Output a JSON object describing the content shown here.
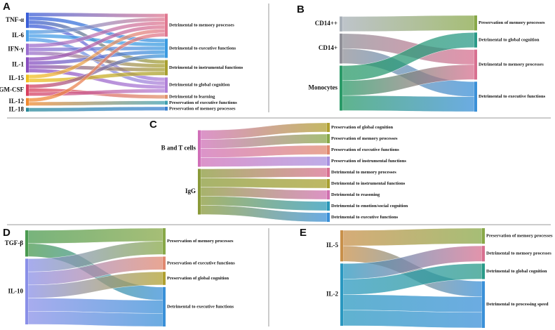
{
  "panels": [
    {
      "letter": "A",
      "sources": [
        {
          "label": "TNF-α",
          "color": "#3a5fd8"
        },
        {
          "label": "IL-6",
          "color": "#4a9fe8"
        },
        {
          "label": "IFN-γ",
          "color": "#9b6fd0"
        },
        {
          "label": "IL-1",
          "color": "#8a4fc0"
        },
        {
          "label": "IL-15",
          "color": "#f0c020"
        },
        {
          "label": "GM-CSF",
          "color": "#d84060"
        },
        {
          "label": "IL-12",
          "color": "#f08a30"
        },
        {
          "label": "IL-18",
          "color": "#2a8a9a"
        }
      ],
      "targets": [
        {
          "label": "Detrimental to memory processes",
          "color": "#e07890"
        },
        {
          "label": "Detrimental to executive functions",
          "color": "#3a9ae0"
        },
        {
          "label": "Detrimental to instrumental functions",
          "color": "#a8a030"
        },
        {
          "label": "Detrimental to global cognition",
          "color": "#b080d8"
        },
        {
          "label": "Detrimental to learning",
          "color": "#e0906a"
        },
        {
          "label": "Preservation of executive functions",
          "color": "#40a0b0"
        },
        {
          "label": "Preservation of memory processes",
          "color": "#3a80d0"
        }
      ],
      "links": [
        [
          0,
          0
        ],
        [
          0,
          1
        ],
        [
          0,
          2
        ],
        [
          0,
          3
        ],
        [
          1,
          0
        ],
        [
          1,
          1
        ],
        [
          1,
          3
        ],
        [
          2,
          0
        ],
        [
          2,
          1
        ],
        [
          2,
          2
        ],
        [
          3,
          0
        ],
        [
          3,
          1
        ],
        [
          3,
          2
        ],
        [
          3,
          3
        ],
        [
          4,
          0
        ],
        [
          4,
          2
        ],
        [
          5,
          1
        ],
        [
          5,
          4
        ],
        [
          5,
          3
        ],
        [
          6,
          0
        ],
        [
          6,
          5
        ],
        [
          7,
          6
        ]
      ]
    },
    {
      "letter": "B",
      "sources": [
        {
          "label": "CD14++",
          "color": "#a8b0b8"
        },
        {
          "label": "CD14+",
          "color": "#909098"
        },
        {
          "label": "Monocytes",
          "color": "#2a9a68"
        }
      ],
      "targets": [
        {
          "label": "Preservation of memory processes",
          "color": "#88a848"
        },
        {
          "label": "Detrimental to global cognition",
          "color": "#2a9a88"
        },
        {
          "label": "Detrimental to memory processes",
          "color": "#d87090"
        },
        {
          "label": "Detrimental to executive functions",
          "color": "#3a90d8"
        }
      ],
      "links": [
        [
          0,
          0
        ],
        [
          1,
          2
        ],
        [
          1,
          3
        ],
        [
          2,
          1
        ],
        [
          2,
          2
        ],
        [
          2,
          3
        ]
      ]
    },
    {
      "letter": "C",
      "sources": [
        {
          "label": "B and T cells",
          "color": "#d070b8"
        },
        {
          "label": "IgG",
          "color": "#8a9a3a"
        }
      ],
      "targets": [
        {
          "label": "Preservation of global cognition",
          "color": "#b0a030"
        },
        {
          "label": "Preservation of memory processes",
          "color": "#88a848"
        },
        {
          "label": "Preservation of executive functions",
          "color": "#e08870"
        },
        {
          "label": "Preservation of instrumental functions",
          "color": "#a890e0"
        },
        {
          "label": "Detrimental to memory processes",
          "color": "#d87090"
        },
        {
          "label": "Detrimental to instrumental functions",
          "color": "#a8a030"
        },
        {
          "label": "Detrimental to reasoning",
          "color": "#d070b0"
        },
        {
          "label": "Detrimental to emotion/social cognition",
          "color": "#2a98b8"
        },
        {
          "label": "Detrimental to executive functions",
          "color": "#3a90d8"
        }
      ],
      "links": [
        [
          0,
          0
        ],
        [
          0,
          1
        ],
        [
          0,
          2
        ],
        [
          0,
          3
        ],
        [
          1,
          4
        ],
        [
          1,
          5
        ],
        [
          1,
          6
        ],
        [
          1,
          7
        ],
        [
          1,
          8
        ]
      ]
    },
    {
      "letter": "D",
      "sources": [
        {
          "label": "TGF-β",
          "color": "#4a9a50"
        },
        {
          "label": "IL-10",
          "color": "#8a90e8"
        }
      ],
      "targets": [
        {
          "label": "Preservation of memory processes",
          "color": "#88a848"
        },
        {
          "label": "Preservation of executive functions",
          "color": "#e08870"
        },
        {
          "label": "Preservation of global cognition",
          "color": "#b0a030"
        },
        {
          "label": "Detrimental to executive functions",
          "color": "#3a90d8"
        }
      ],
      "links": [
        [
          0,
          0
        ],
        [
          0,
          3
        ],
        [
          1,
          0
        ],
        [
          1,
          1
        ],
        [
          1,
          2
        ],
        [
          1,
          3
        ],
        [
          1,
          3
        ]
      ]
    },
    {
      "letter": "E",
      "sources": [
        {
          "label": "IL-5",
          "color": "#c8904a"
        },
        {
          "label": "IL-2",
          "color": "#2a98c0"
        }
      ],
      "targets": [
        {
          "label": "Preservation of memory processes",
          "color": "#88a848"
        },
        {
          "label": "Detrimental to memory processes",
          "color": "#d87090"
        },
        {
          "label": "Detrimental to global cognition",
          "color": "#2a9a88"
        },
        {
          "label": "Detrimental to processing speed",
          "color": "#3a90d8"
        }
      ],
      "links": [
        [
          0,
          0
        ],
        [
          0,
          3
        ],
        [
          1,
          1
        ],
        [
          1,
          2
        ],
        [
          1,
          3
        ],
        [
          1,
          3
        ]
      ]
    }
  ]
}
